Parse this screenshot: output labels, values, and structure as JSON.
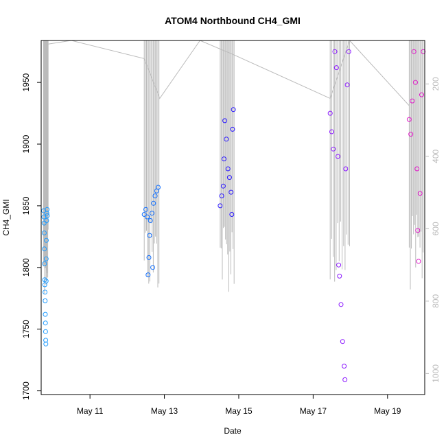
{
  "chart_data": {
    "type": "scatter",
    "title": "ATOM4 Northbound CH4_GMI",
    "xlabel": "Date",
    "ylabel": "CH4_GMI",
    "y2label": "",
    "x_ticks": [
      "May 11",
      "May 13",
      "May 15",
      "May 17",
      "May 19"
    ],
    "y_ticks": [
      "1700",
      "1750",
      "1800",
      "1850",
      "1900",
      "1950"
    ],
    "y2_ticks": [
      "200",
      "400",
      "600",
      "800",
      "1000"
    ],
    "xlim": [
      "2018-05-09T16:30",
      "2018-05-20T00:00"
    ],
    "ylim": [
      1697,
      1984
    ],
    "y2lim": [
      1058,
      80
    ],
    "y2_reversed": true,
    "grid": false,
    "point_style": "open-circle",
    "pressure_line_color": "#bbbbbb",
    "series": [
      {
        "flight": 1,
        "color": "#1E9BFF",
        "t_start": "2018-05-09T18:00",
        "t_end": "2018-05-09T21:00",
        "ch4_range": [
          1738,
          1848
        ],
        "points": [
          {
            "x": "2018-05-09T18:05",
            "y": 1846
          },
          {
            "x": "2018-05-09T18:15",
            "y": 1841
          },
          {
            "x": "2018-05-09T18:25",
            "y": 1836
          },
          {
            "x": "2018-05-09T18:30",
            "y": 1828
          },
          {
            "x": "2018-05-09T18:35",
            "y": 1815
          },
          {
            "x": "2018-05-09T18:40",
            "y": 1803
          },
          {
            "x": "2018-05-09T18:45",
            "y": 1790
          },
          {
            "x": "2018-05-09T18:50",
            "y": 1786
          },
          {
            "x": "2018-05-09T19:00",
            "y": 1780
          },
          {
            "x": "2018-05-09T19:05",
            "y": 1773
          },
          {
            "x": "2018-05-09T19:10",
            "y": 1762
          },
          {
            "x": "2018-05-09T19:15",
            "y": 1755
          },
          {
            "x": "2018-05-09T19:20",
            "y": 1748
          },
          {
            "x": "2018-05-09T19:25",
            "y": 1741
          },
          {
            "x": "2018-05-09T19:30",
            "y": 1738
          },
          {
            "x": "2018-05-09T19:40",
            "y": 1789
          },
          {
            "x": "2018-05-09T19:45",
            "y": 1807
          },
          {
            "x": "2018-05-09T19:50",
            "y": 1822
          },
          {
            "x": "2018-05-09T20:00",
            "y": 1838
          },
          {
            "x": "2018-05-09T20:10",
            "y": 1844
          },
          {
            "x": "2018-05-09T20:20",
            "y": 1847
          },
          {
            "x": "2018-05-09T20:30",
            "y": 1842
          }
        ]
      },
      {
        "flight": 2,
        "color": "#0F6EFF",
        "t_start": "2018-05-12T11:00",
        "t_end": "2018-05-12T20:30",
        "ch4_range": [
          1793,
          1866
        ],
        "points": [
          {
            "x": "2018-05-12T11:00",
            "y": 1843
          },
          {
            "x": "2018-05-12T12:00",
            "y": 1847
          },
          {
            "x": "2018-05-12T13:00",
            "y": 1841
          },
          {
            "x": "2018-05-12T13:30",
            "y": 1794
          },
          {
            "x": "2018-05-12T14:00",
            "y": 1808
          },
          {
            "x": "2018-05-12T14:30",
            "y": 1826
          },
          {
            "x": "2018-05-12T15:00",
            "y": 1838
          },
          {
            "x": "2018-05-12T16:00",
            "y": 1844
          },
          {
            "x": "2018-05-12T16:30",
            "y": 1800
          },
          {
            "x": "2018-05-12T17:00",
            "y": 1852
          },
          {
            "x": "2018-05-12T18:00",
            "y": 1858
          },
          {
            "x": "2018-05-12T19:00",
            "y": 1862
          },
          {
            "x": "2018-05-12T20:00",
            "y": 1865
          }
        ]
      },
      {
        "flight": 3,
        "color": "#2A17FF",
        "t_start": "2018-05-14T12:00",
        "t_end": "2018-05-14T21:00",
        "ch4_range": [
          1843,
          1929
        ],
        "points": [
          {
            "x": "2018-05-14T12:00",
            "y": 1850
          },
          {
            "x": "2018-05-14T13:00",
            "y": 1858
          },
          {
            "x": "2018-05-14T14:00",
            "y": 1866
          },
          {
            "x": "2018-05-14T14:30",
            "y": 1888
          },
          {
            "x": "2018-05-14T15:00",
            "y": 1919
          },
          {
            "x": "2018-05-14T16:00",
            "y": 1904
          },
          {
            "x": "2018-05-14T17:00",
            "y": 1880
          },
          {
            "x": "2018-05-14T18:00",
            "y": 1873
          },
          {
            "x": "2018-05-14T19:00",
            "y": 1861
          },
          {
            "x": "2018-05-14T20:00",
            "y": 1912
          },
          {
            "x": "2018-05-14T20:30",
            "y": 1928
          },
          {
            "x": "2018-05-14T19:30",
            "y": 1843
          }
        ]
      },
      {
        "flight": 4,
        "color": "#8A16FF",
        "t_start": "2018-05-17T11:00",
        "t_end": "2018-05-17T23:30",
        "ch4_range": [
          1709,
          1975
        ],
        "points": [
          {
            "x": "2018-05-17T11:00",
            "y": 1925
          },
          {
            "x": "2018-05-17T12:00",
            "y": 1910
          },
          {
            "x": "2018-05-17T13:00",
            "y": 1896
          },
          {
            "x": "2018-05-17T14:00",
            "y": 1975
          },
          {
            "x": "2018-05-17T15:00",
            "y": 1962
          },
          {
            "x": "2018-05-17T16:00",
            "y": 1890
          },
          {
            "x": "2018-05-17T16:30",
            "y": 1802
          },
          {
            "x": "2018-05-17T17:00",
            "y": 1793
          },
          {
            "x": "2018-05-17T18:00",
            "y": 1770
          },
          {
            "x": "2018-05-17T19:00",
            "y": 1740
          },
          {
            "x": "2018-05-17T20:00",
            "y": 1720
          },
          {
            "x": "2018-05-17T20:30",
            "y": 1709
          },
          {
            "x": "2018-05-17T21:00",
            "y": 1880
          },
          {
            "x": "2018-05-17T22:00",
            "y": 1948
          },
          {
            "x": "2018-05-17T23:00",
            "y": 1975
          }
        ]
      },
      {
        "flight": 5,
        "color": "#E015C8",
        "t_start": "2018-05-19T14:00",
        "t_end": "2018-05-19T23:00",
        "ch4_range": [
          1804,
          1975
        ],
        "points": [
          {
            "x": "2018-05-19T14:00",
            "y": 1920
          },
          {
            "x": "2018-05-19T15:00",
            "y": 1908
          },
          {
            "x": "2018-05-19T16:00",
            "y": 1935
          },
          {
            "x": "2018-05-19T17:00",
            "y": 1975
          },
          {
            "x": "2018-05-19T18:00",
            "y": 1950
          },
          {
            "x": "2018-05-19T19:00",
            "y": 1880
          },
          {
            "x": "2018-05-19T19:30",
            "y": 1830
          },
          {
            "x": "2018-05-19T20:00",
            "y": 1805
          },
          {
            "x": "2018-05-19T21:00",
            "y": 1860
          },
          {
            "x": "2018-05-19T22:00",
            "y": 1940
          },
          {
            "x": "2018-05-19T23:00",
            "y": 1975
          }
        ]
      }
    ]
  }
}
